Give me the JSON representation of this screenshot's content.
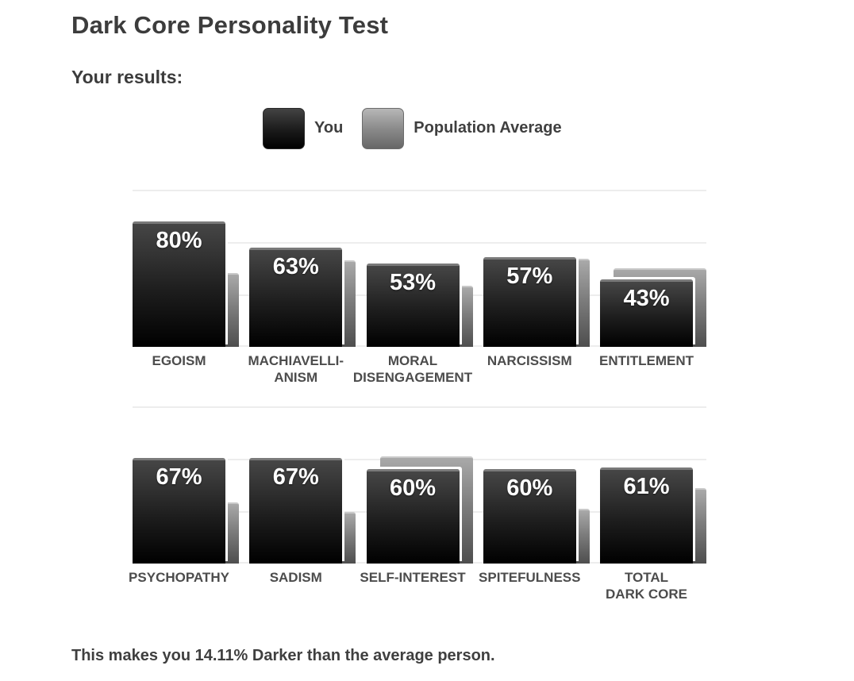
{
  "page": {
    "title": "Dark Core Personality Test",
    "results_heading": "Your results:",
    "summary": "This makes you 14.11% Darker than the average person."
  },
  "legend": {
    "you_label": "You",
    "population_label": "Population Average"
  },
  "colors": {
    "you_bar_top": "#464646",
    "you_bar_bottom": "#000000",
    "avg_bar_top": "#a9a9a9",
    "avg_bar_bottom": "#4e4e4e",
    "heading_text": "#3c3c3c",
    "category_label_text": "#4c4c4c",
    "percent_text": "#ffffff",
    "gridline": "#ededed"
  },
  "chart_data": {
    "type": "bar",
    "unit": "%",
    "ylim": [
      0,
      100
    ],
    "gridlines_pct": [
      0,
      33.3,
      66.7,
      100
    ],
    "legend_position": "top-center",
    "series_names": [
      "You",
      "Population Average"
    ],
    "rows": [
      {
        "categories": [
          {
            "label_lines": [
              "EGOISM"
            ],
            "you": 80,
            "avg": 46
          },
          {
            "label_lines": [
              "MACHIAVELLI-",
              "ANISM"
            ],
            "you": 63,
            "avg": 54
          },
          {
            "label_lines": [
              "MORAL",
              "DISENGAGEMENT"
            ],
            "you": 53,
            "avg": 38
          },
          {
            "label_lines": [
              "NARCISSISM"
            ],
            "you": 57,
            "avg": 55
          },
          {
            "label_lines": [
              "ENTITLEMENT"
            ],
            "you": 43,
            "avg": 49
          }
        ]
      },
      {
        "categories": [
          {
            "label_lines": [
              "PSYCHOPATHY"
            ],
            "you": 67,
            "avg": 38
          },
          {
            "label_lines": [
              "SADISM"
            ],
            "you": 67,
            "avg": 32
          },
          {
            "label_lines": [
              "SELF-INTEREST"
            ],
            "you": 60,
            "avg": 67
          },
          {
            "label_lines": [
              "SPITEFULNESS"
            ],
            "you": 60,
            "avg": 34
          },
          {
            "label_lines": [
              "TOTAL",
              "DARK CORE"
            ],
            "you": 61,
            "avg": 47
          }
        ]
      }
    ]
  }
}
